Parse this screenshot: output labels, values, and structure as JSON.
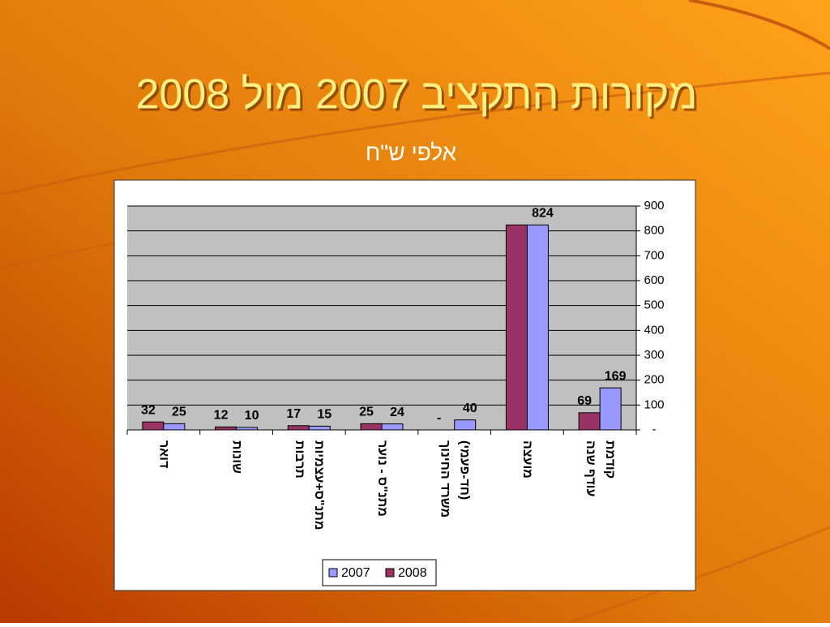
{
  "chart_data": {
    "type": "bar",
    "title": "מקורות התקציב 2007 מול 2008",
    "subtitle": "אלפי ש\"ח",
    "categories": [
      [
        "דואר"
      ],
      [
        "שונות"
      ],
      [
        "תרבות",
        "מתנ\"ס+עצמיות"
      ],
      [
        "מתנ\"ס - נוער"
      ],
      [
        "משרד החינוך",
        "(חד-פעמי)"
      ],
      [
        "מועצה"
      ],
      [
        "עודף שנה",
        "קודמת"
      ]
    ],
    "series": [
      {
        "name": "2008",
        "color": "#993366",
        "values": [
          32,
          12,
          17,
          25,
          0,
          824,
          69
        ],
        "value_labels": [
          "32",
          "12",
          "17",
          "25",
          "-",
          null,
          "69"
        ]
      },
      {
        "name": "2007",
        "color": "#9999ff",
        "values": [
          25,
          10,
          15,
          24,
          40,
          824,
          169
        ],
        "value_labels": [
          "25",
          "10",
          "15",
          "24",
          "40",
          "824",
          "169"
        ]
      }
    ],
    "ylim": [
      0,
      900
    ],
    "yticks": [
      {
        "value": 0,
        "label": "-"
      },
      100,
      200,
      300,
      400,
      500,
      600,
      700,
      800,
      900
    ],
    "grid": true,
    "legend": "bottom"
  }
}
